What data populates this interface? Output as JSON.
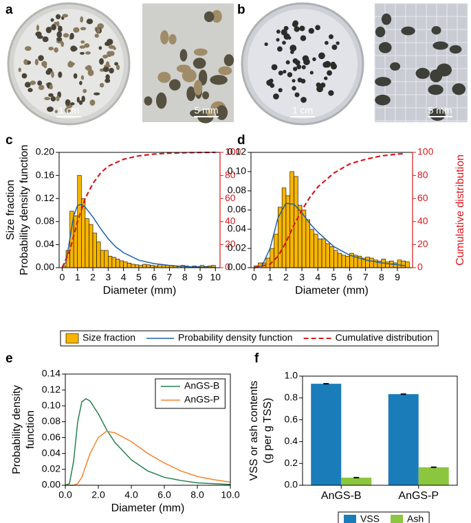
{
  "photos": [
    {
      "panel_label": "a",
      "scale_bars": [
        "1 cm",
        "5 mm"
      ]
    },
    {
      "panel_label": "b",
      "scale_bars": [
        "1 cm",
        "5 mm"
      ]
    }
  ],
  "chart_data": [
    {
      "type": "histogram",
      "panel_label": "c",
      "xlabel": "Diameter (mm)",
      "ylabel": [
        "Size fraction",
        "Probability density function"
      ],
      "legend": "bottom",
      "xlim": [
        -0.2,
        10.3
      ],
      "xticks": [
        0,
        1,
        2,
        3,
        4,
        5,
        6,
        7,
        8,
        9,
        10
      ],
      "ylim": [
        0,
        0.2
      ],
      "yticks": [
        {
          "value": 0,
          "label": "0.00"
        },
        {
          "value": 0.04,
          "label": "0.04"
        },
        {
          "value": 0.08,
          "label": "0.08"
        },
        {
          "value": 0.12,
          "label": "0.12"
        },
        {
          "value": 0.16,
          "label": "0.16"
        },
        {
          "value": 0.2,
          "label": "0.20"
        }
      ],
      "y2lim": [
        0,
        100
      ],
      "y2ticks": [
        0,
        20,
        40,
        60,
        80,
        100
      ],
      "series": [
        {
          "name": "Size fraction",
          "color": "#f7b500",
          "bins": [
            0,
            0.25,
            0.5,
            0.75,
            1,
            1.25,
            1.5,
            1.75,
            2,
            2.25,
            2.5,
            2.75,
            3,
            3.25,
            3.5,
            3.75,
            4,
            4.25,
            4.5,
            4.75,
            5,
            5.25,
            5.5,
            5.75,
            6,
            6.25,
            6.5,
            6.75,
            7,
            7.25,
            7.5,
            7.75,
            8,
            8.25,
            8.5,
            8.75,
            9,
            9.25,
            9.5,
            9.75,
            10
          ],
          "values": [
            0.003,
            0.03,
            0.098,
            0.09,
            0.16,
            0.12,
            0.085,
            0.075,
            0.06,
            0.045,
            0.03,
            0.03,
            0.02,
            0.018,
            0.015,
            0.012,
            0.01,
            0.008,
            0.006,
            0.005,
            0.004,
            0.006,
            0.005,
            0.004,
            0.003,
            0.006,
            0.005,
            0.004,
            0.004,
            0.003,
            0.002,
            0.004,
            0.003,
            0.002,
            0.003,
            0.002,
            0.004,
            0.002,
            0.003,
            0.004
          ]
        },
        {
          "name": "Probability density function",
          "color": "#1f5fa8",
          "x": [
            0,
            0.25,
            0.5,
            0.75,
            1,
            1.25,
            1.5,
            2,
            2.5,
            3,
            3.5,
            4,
            5,
            6,
            7,
            8,
            9,
            10
          ],
          "values": [
            0,
            0.01,
            0.05,
            0.09,
            0.108,
            0.11,
            0.105,
            0.088,
            0.068,
            0.05,
            0.036,
            0.026,
            0.013,
            0.007,
            0.004,
            0.002,
            0.001,
            0.0005
          ]
        },
        {
          "name": "Cumulative distribution",
          "color": "#d7191c",
          "axis": "y2",
          "dashed": true,
          "x": [
            0,
            0.5,
            1,
            1.5,
            2,
            2.5,
            3,
            4,
            5,
            6,
            7,
            8,
            9,
            10
          ],
          "values": [
            0,
            15,
            40,
            60,
            73,
            82,
            88,
            94,
            97,
            98.5,
            99.3,
            99.7,
            99.9,
            100
          ]
        }
      ]
    },
    {
      "type": "histogram",
      "panel_label": "d",
      "xlabel": "Diameter (mm)",
      "y2label": "Cumulative distribution",
      "xlim": [
        -0.2,
        9.95
      ],
      "xticks": [
        0,
        1,
        2,
        3,
        4,
        5,
        6,
        7,
        8,
        9
      ],
      "ylim": [
        0,
        0.12
      ],
      "yticks": [
        {
          "value": 0,
          "label": "0.00"
        },
        {
          "value": 0.02,
          "label": "0.02"
        },
        {
          "value": 0.04,
          "label": "0.04"
        },
        {
          "value": 0.06,
          "label": "0.06"
        },
        {
          "value": 0.08,
          "label": "0.08"
        },
        {
          "value": 0.1,
          "label": "0.10"
        },
        {
          "value": 0.12,
          "label": "0.12"
        }
      ],
      "y2lim": [
        0,
        100
      ],
      "y2ticks": [
        0,
        20,
        40,
        60,
        80,
        100
      ],
      "series": [
        {
          "name": "Size fraction",
          "color": "#f7b500",
          "bins": [
            0,
            0.25,
            0.5,
            0.75,
            1,
            1.25,
            1.5,
            1.75,
            2,
            2.25,
            2.5,
            2.75,
            3,
            3.25,
            3.5,
            3.75,
            4,
            4.25,
            4.5,
            4.75,
            5,
            5.25,
            5.5,
            5.75,
            6,
            6.25,
            6.5,
            6.75,
            7,
            7.25,
            7.5,
            7.75,
            8,
            8.25,
            8.5,
            8.75,
            9,
            9.25,
            9.5,
            9.75
          ],
          "values": [
            0.002,
            0.005,
            0.005,
            0.01,
            0.02,
            0.035,
            0.063,
            0.083,
            0.075,
            0.1,
            0.095,
            0.065,
            0.06,
            0.05,
            0.04,
            0.035,
            0.03,
            0.03,
            0.025,
            0.022,
            0.018,
            0.015,
            0.013,
            0.012,
            0.015,
            0.013,
            0.012,
            0.01,
            0.011,
            0.01,
            0.008,
            0.007,
            0.009,
            0.006,
            0.007,
            0.005,
            0.008,
            0.007,
            0.006
          ]
        },
        {
          "name": "Probability density function",
          "color": "#1f5fa8",
          "x": [
            0,
            0.5,
            1,
            1.5,
            2,
            2.5,
            3,
            3.5,
            4,
            5,
            6,
            7,
            8,
            9,
            9.5
          ],
          "values": [
            0,
            0.002,
            0.02,
            0.052,
            0.067,
            0.066,
            0.057,
            0.046,
            0.037,
            0.022,
            0.013,
            0.008,
            0.005,
            0.003,
            0.002
          ]
        },
        {
          "name": "Cumulative distribution",
          "color": "#d7191c",
          "axis": "y2",
          "dashed": true,
          "x": [
            0,
            1,
            1.5,
            2,
            2.5,
            3,
            3.5,
            4,
            5,
            6,
            7,
            8,
            9,
            9.5
          ],
          "values": [
            0,
            3,
            10,
            22,
            37,
            50,
            61,
            70,
            82,
            90,
            94,
            97,
            98.5,
            99
          ]
        }
      ]
    },
    {
      "type": "line",
      "panel_label": "e",
      "xlabel": "Diameter (mm)",
      "ylabel": [
        "Probability density",
        "function"
      ],
      "legend": "upper right",
      "xlim": [
        0,
        10
      ],
      "xticks": [
        {
          "value": 0,
          "label": "0.0"
        },
        {
          "value": 2,
          "label": "2.0"
        },
        {
          "value": 4,
          "label": "4.0"
        },
        {
          "value": 6,
          "label": "6.0"
        },
        {
          "value": 8,
          "label": "8.0"
        },
        {
          "value": 10,
          "label": "10.0"
        }
      ],
      "ylim": [
        0,
        0.14
      ],
      "yticks": [
        {
          "value": 0,
          "label": "0.00"
        },
        {
          "value": 0.02,
          "label": "0.02"
        },
        {
          "value": 0.04,
          "label": "0.04"
        },
        {
          "value": 0.06,
          "label": "0.06"
        },
        {
          "value": 0.08,
          "label": "0.08"
        },
        {
          "value": 0.1,
          "label": "0.10"
        },
        {
          "value": 0.12,
          "label": "0.12"
        },
        {
          "value": 0.14,
          "label": "0.14"
        }
      ],
      "x": [
        0,
        0.25,
        0.5,
        0.75,
        1,
        1.25,
        1.5,
        2,
        2.5,
        3,
        4,
        5,
        6,
        7,
        8,
        9,
        10
      ],
      "series": [
        {
          "name": "AnGS-B",
          "color": "#23804a",
          "values": [
            0,
            0.002,
            0.03,
            0.08,
            0.105,
            0.109,
            0.106,
            0.09,
            0.07,
            0.054,
            0.032,
            0.018,
            0.01,
            0.006,
            0.003,
            0.002,
            0.001
          ]
        },
        {
          "name": "AnGS-P",
          "color": "#f5842a",
          "values": [
            0,
            0,
            0,
            0.002,
            0.01,
            0.025,
            0.04,
            0.06,
            0.068,
            0.066,
            0.055,
            0.04,
            0.028,
            0.018,
            0.011,
            0.007,
            0.004
          ]
        }
      ]
    },
    {
      "type": "bar",
      "panel_label": "f",
      "ylabel": [
        "VSS or ash contents",
        "(g per g TSS)"
      ],
      "legend": "bottom",
      "categories": [
        "AnGS-B",
        "AnGS-P"
      ],
      "ylim": [
        0,
        1
      ],
      "yticks": [
        {
          "value": 0,
          "label": "0.0"
        },
        {
          "value": 0.2,
          "label": "0.2"
        },
        {
          "value": 0.4,
          "label": "0.4"
        },
        {
          "value": 0.6,
          "label": "0.6"
        },
        {
          "value": 0.8,
          "label": "0.8"
        },
        {
          "value": 1,
          "label": "1.0"
        }
      ],
      "series": [
        {
          "name": "VSS",
          "color": "#1b7cba",
          "values": [
            0.93,
            0.835
          ],
          "errors": [
            0.003,
            0.003
          ]
        },
        {
          "name": "Ash",
          "color": "#8cc63e",
          "values": [
            0.07,
            0.165
          ],
          "errors": [
            0.003,
            0.003
          ]
        }
      ]
    }
  ]
}
